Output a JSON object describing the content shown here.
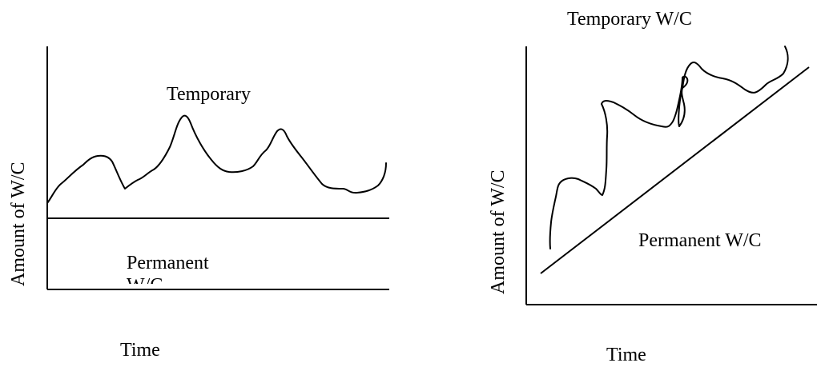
{
  "diagrams": [
    {
      "y_axis_label": "Amount of W/C",
      "x_axis_label": "Time",
      "curve_label": "Temporary",
      "baseline_label": "Permanent",
      "baseline_label_clipped_continuation": "W/C"
    },
    {
      "title": "Temporary W/C",
      "y_axis_label": "Amount of W/C",
      "x_axis_label": "Time",
      "baseline_label": "Permanent W/C"
    }
  ],
  "colors": {
    "ink": "#000000",
    "background": "#ffffff"
  }
}
